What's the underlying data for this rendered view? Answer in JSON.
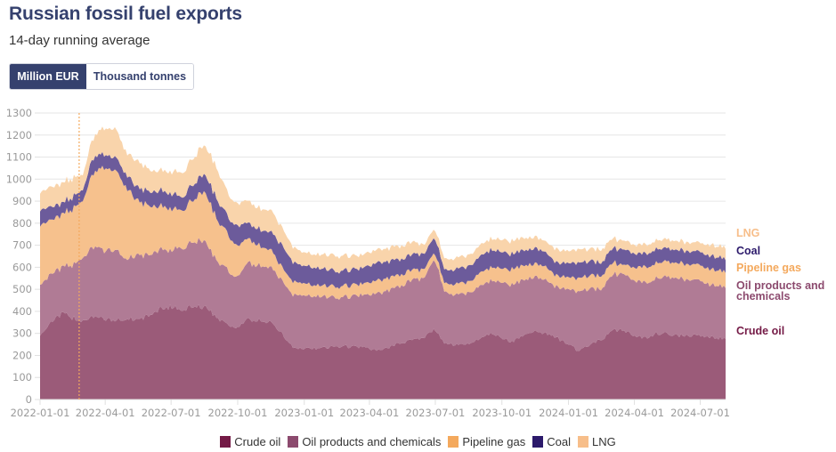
{
  "header": {
    "title": "Russian fossil fuel exports",
    "subtitle": "14-day running average"
  },
  "unit_toggle": {
    "options": [
      {
        "label": "Million EUR",
        "active": true
      },
      {
        "label": "Thousand tonnes",
        "active": false
      }
    ]
  },
  "chart_data": {
    "type": "area",
    "stacked": true,
    "title": "Russian fossil fuel exports",
    "subtitle": "14-day running average",
    "xlabel": "",
    "ylabel": "Million EUR",
    "ylim": [
      0,
      1300
    ],
    "yticks": [
      0,
      100,
      200,
      300,
      400,
      500,
      600,
      700,
      800,
      900,
      1000,
      1100,
      1200,
      1300
    ],
    "xlim": [
      "2022-01-01",
      "2024-08-05"
    ],
    "xticks": [
      "2022-01-01",
      "2022-04-01",
      "2022-07-01",
      "2022-10-01",
      "2023-01-01",
      "2023-04-01",
      "2023-07-01",
      "2023-10-01",
      "2024-01-01",
      "2024-04-01",
      "2024-07-01"
    ],
    "grid": true,
    "legend": "bottom",
    "annotation": {
      "type": "vertical-dashed-line",
      "date": "2022-02-24"
    },
    "colors": {
      "Crude oil": "#9b5b79",
      "Oil products and chemicals": "#b07b95",
      "Pipeline gas": "#f6c18d",
      "Coal": "#6c5b9b",
      "LNG": "#f9d4ab"
    },
    "label_colors": {
      "Crude oil": "#741a46",
      "Oil products and chemicals": "#8c4a6e",
      "Pipeline gas": "#f4a95d",
      "Coal": "#2c1a6b",
      "LNG": "#f7be8a"
    },
    "x": [
      "2022-01-01",
      "2022-01-15",
      "2022-02-01",
      "2022-02-15",
      "2022-03-01",
      "2022-03-15",
      "2022-04-01",
      "2022-04-15",
      "2022-05-01",
      "2022-05-15",
      "2022-06-01",
      "2022-06-15",
      "2022-07-01",
      "2022-07-15",
      "2022-08-01",
      "2022-08-15",
      "2022-09-01",
      "2022-09-15",
      "2022-10-01",
      "2022-10-15",
      "2022-11-01",
      "2022-11-15",
      "2022-12-01",
      "2022-12-15",
      "2023-01-01",
      "2023-01-15",
      "2023-02-01",
      "2023-02-15",
      "2023-03-01",
      "2023-03-15",
      "2023-04-01",
      "2023-04-15",
      "2023-05-01",
      "2023-05-15",
      "2023-06-01",
      "2023-06-15",
      "2023-07-01",
      "2023-07-15",
      "2023-08-01",
      "2023-08-15",
      "2023-09-01",
      "2023-09-15",
      "2023-10-01",
      "2023-10-15",
      "2023-11-01",
      "2023-11-15",
      "2023-12-01",
      "2023-12-15",
      "2024-01-01",
      "2024-01-15",
      "2024-02-01",
      "2024-02-15",
      "2024-03-01",
      "2024-03-15",
      "2024-04-01",
      "2024-04-15",
      "2024-05-01",
      "2024-05-15",
      "2024-06-01",
      "2024-06-15",
      "2024-07-01",
      "2024-07-15",
      "2024-08-05"
    ],
    "series": [
      {
        "name": "Crude oil",
        "values": [
          290,
          350,
          390,
          370,
          360,
          380,
          360,
          360,
          370,
          360,
          380,
          410,
          420,
          410,
          420,
          420,
          380,
          340,
          330,
          360,
          360,
          350,
          300,
          240,
          230,
          230,
          235,
          240,
          240,
          240,
          230,
          220,
          240,
          260,
          270,
          280,
          320,
          250,
          250,
          250,
          280,
          300,
          280,
          260,
          300,
          310,
          300,
          280,
          250,
          220,
          250,
          270,
          310,
          320,
          290,
          280,
          300,
          300,
          290,
          290,
          290,
          280,
          280
        ]
      },
      {
        "name": "Oil products and chemicals",
        "values": [
          230,
          220,
          210,
          240,
          290,
          320,
          310,
          320,
          270,
          290,
          280,
          270,
          260,
          280,
          290,
          310,
          260,
          250,
          230,
          260,
          250,
          250,
          240,
          240,
          240,
          240,
          230,
          220,
          230,
          230,
          250,
          260,
          260,
          260,
          270,
          270,
          320,
          230,
          230,
          230,
          240,
          240,
          250,
          260,
          250,
          250,
          240,
          230,
          250,
          270,
          250,
          230,
          250,
          260,
          250,
          250,
          250,
          260,
          260,
          250,
          250,
          240,
          230
        ]
      },
      {
        "name": "Pipeline gas",
        "values": [
          270,
          250,
          240,
          250,
          260,
          340,
          370,
          370,
          320,
          250,
          220,
          200,
          190,
          170,
          190,
          230,
          190,
          170,
          140,
          110,
          90,
          80,
          60,
          60,
          55,
          50,
          50,
          50,
          50,
          50,
          55,
          60,
          55,
          50,
          45,
          40,
          30,
          40,
          50,
          50,
          60,
          60,
          65,
          70,
          65,
          60,
          60,
          50,
          55,
          60,
          60,
          60,
          55,
          40,
          60,
          70,
          70,
          70,
          70,
          70,
          70,
          70,
          70
        ]
      },
      {
        "name": "Coal",
        "values": [
          70,
          60,
          50,
          55,
          50,
          70,
          60,
          60,
          60,
          60,
          65,
          70,
          70,
          60,
          70,
          80,
          90,
          80,
          90,
          70,
          75,
          80,
          100,
          90,
          80,
          80,
          75,
          70,
          70,
          70,
          75,
          80,
          75,
          70,
          70,
          70,
          70,
          60,
          70,
          70,
          75,
          80,
          75,
          70,
          70,
          70,
          65,
          60,
          65,
          70,
          65,
          60,
          65,
          70,
          65,
          60,
          65,
          60,
          60,
          60,
          60,
          60,
          60
        ]
      },
      {
        "name": "LNG",
        "values": [
          80,
          90,
          90,
          85,
          70,
          90,
          120,
          130,
          100,
          120,
          100,
          90,
          100,
          110,
          120,
          130,
          140,
          110,
          100,
          100,
          95,
          100,
          80,
          70,
          60,
          60,
          65,
          70,
          65,
          60,
          60,
          60,
          60,
          60,
          55,
          40,
          40,
          50,
          50,
          50,
          50,
          50,
          55,
          60,
          55,
          50,
          50,
          60,
          55,
          60,
          55,
          60,
          45,
          40,
          40,
          40,
          40,
          40,
          40,
          40,
          40,
          50,
          50
        ]
      }
    ]
  }
}
